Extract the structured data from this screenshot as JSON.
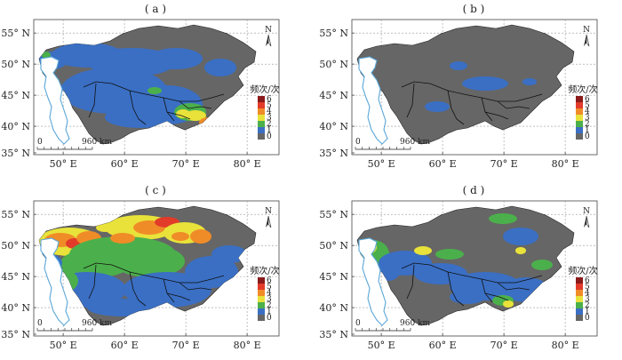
{
  "panels": [
    {
      "label": "( a )",
      "variant": "a"
    },
    {
      "label": "( b )",
      "variant": "b"
    },
    {
      "label": "( c )",
      "variant": "c"
    },
    {
      "label": "( d )",
      "variant": "d"
    }
  ],
  "axes": {
    "lat_ticks": [
      "55° N",
      "50° N",
      "45° N",
      "40° N",
      "35° N"
    ],
    "lon_ticks": [
      "50° E",
      "60° E",
      "70° E",
      "80° E"
    ]
  },
  "legend": {
    "title": "频次/次",
    "levels": [
      "6",
      "5",
      "4",
      "3",
      "2",
      "1",
      "0"
    ],
    "colors": [
      "#8b1a1a",
      "#e23b2a",
      "#f08c28",
      "#e8e23a",
      "#4bb04b",
      "#3a6fc4",
      "#666666"
    ]
  },
  "scale_bar": {
    "start": "0",
    "end": "960 km"
  },
  "north_arrow": {
    "label": "N"
  },
  "colors": {
    "nodata": "#666666",
    "water": "#5aa7d8",
    "border": "#111111"
  }
}
